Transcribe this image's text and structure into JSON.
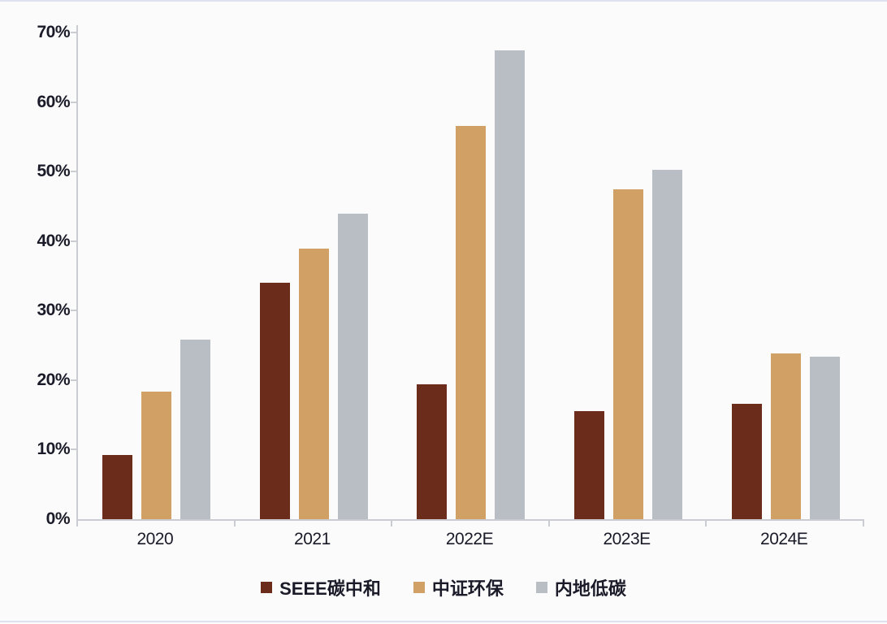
{
  "chart_data": {
    "type": "bar",
    "title": "",
    "categories": [
      "2020",
      "2021",
      "2022E",
      "2023E",
      "2024E"
    ],
    "series": [
      {
        "name": "SEEE碳中和",
        "color": "#6b2c1c",
        "values": [
          9.2,
          34.0,
          19.4,
          15.5,
          16.6
        ]
      },
      {
        "name": "中证环保",
        "color": "#d1a065",
        "values": [
          18.4,
          38.9,
          56.6,
          47.4,
          23.8
        ]
      },
      {
        "name": "内地低碳",
        "color": "#b9bdc4",
        "values": [
          25.8,
          44.0,
          67.4,
          50.3,
          23.4
        ]
      }
    ],
    "xlabel": "",
    "ylabel": "",
    "ylim": [
      0,
      70
    ],
    "ytick_step": 10,
    "ytick_labels": [
      "0%",
      "10%",
      "20%",
      "30%",
      "40%",
      "50%",
      "60%",
      "70%"
    ],
    "grid": false,
    "legend_position": "bottom"
  },
  "colors": {
    "text": "#1a1a28",
    "axis": "#cbccd1",
    "background": "#fbfbfc",
    "edge_rule": "#dfe2ee"
  }
}
